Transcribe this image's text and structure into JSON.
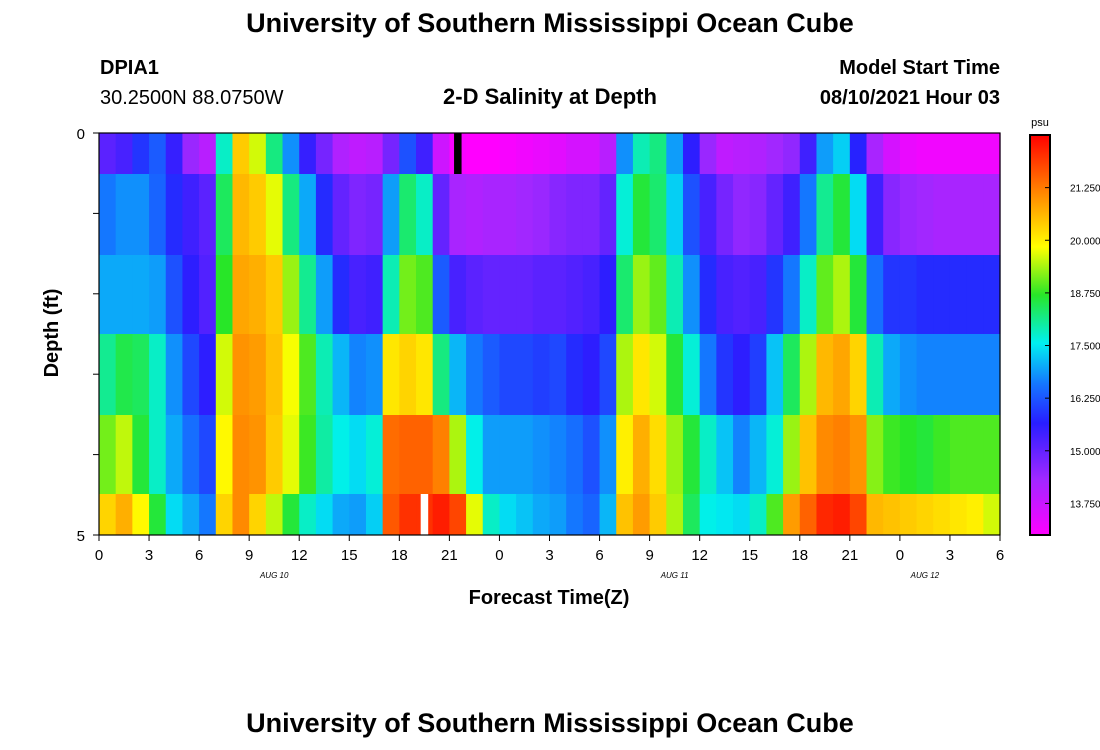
{
  "header": {
    "title": "University of Southern Mississippi Ocean Cube",
    "station": "DPIA1",
    "coords": "30.2500N  88.0750W",
    "plot_title": "2-D Salinity at Depth",
    "model_start_label": "Model Start Time",
    "model_start_value": "08/10/2021 Hour 03"
  },
  "footer": {
    "title": "University of Southern Mississippi Ocean Cube"
  },
  "chart_data": {
    "type": "heatmap",
    "title": "2-D Salinity at Depth",
    "xlabel": "Forecast Time(Z)",
    "ylabel": "Depth (ft)",
    "ylim": [
      0,
      5
    ],
    "x_tick_labels": [
      "0",
      "3",
      "6",
      "9",
      "12",
      "15",
      "18",
      "21",
      "0",
      "3",
      "6",
      "9",
      "12",
      "15",
      "18",
      "21",
      "0",
      "3",
      "6"
    ],
    "day_labels": [
      {
        "text": "AUG  10",
        "tick_index": 3.5
      },
      {
        "text": "AUG  11",
        "tick_index": 11.5
      },
      {
        "text": "AUG  12",
        "tick_index": 16.5
      }
    ],
    "y_tick_labels": [
      "0",
      "5"
    ],
    "colorbar": {
      "unit": "psu",
      "min": 13.0,
      "max": 22.5,
      "tick_labels": [
        "21.250",
        "20.000",
        "18.750",
        "17.500",
        "16.250",
        "15.000",
        "13.750"
      ],
      "tick_values": [
        21.25,
        20.0,
        18.75,
        17.5,
        16.25,
        15.0,
        13.75
      ]
    },
    "x_hours": [
      0,
      1,
      2,
      3,
      4,
      5,
      6,
      7,
      8,
      9,
      10,
      11,
      12,
      13,
      14,
      15,
      16,
      17,
      18,
      19,
      20,
      21,
      22,
      23,
      24,
      25,
      26,
      27,
      28,
      29,
      30,
      31,
      32,
      33,
      34,
      35,
      36,
      37,
      38,
      39,
      40,
      41,
      42,
      43,
      44,
      45,
      46,
      47,
      48,
      49,
      50,
      51,
      52,
      53
    ],
    "depth_rows": [
      0,
      1,
      2,
      3,
      4,
      5
    ],
    "salinity_psu": [
      [
        15.1,
        15.3,
        15.9,
        16.3,
        15.5,
        14.4,
        14.0,
        17.8,
        20.4,
        19.6,
        18.2,
        16.8,
        15.5,
        14.8,
        14.1,
        13.9,
        14.0,
        14.8,
        16.2,
        15.4,
        13.7,
        13.1,
        13.0,
        13.0,
        13.1,
        13.2,
        13.3,
        13.4,
        13.6,
        13.6,
        14.0,
        16.8,
        17.9,
        18.2,
        16.9,
        15.6,
        14.4,
        13.9,
        14.0,
        14.1,
        14.3,
        14.5,
        15.4,
        16.9,
        17.3,
        15.7,
        14.2,
        13.6,
        13.3,
        13.2,
        13.2,
        13.2,
        13.2,
        13.2
      ],
      [
        16.6,
        16.8,
        16.8,
        16.4,
        15.8,
        15.4,
        15.1,
        18.4,
        20.6,
        20.4,
        19.7,
        18.2,
        17.0,
        15.8,
        15.0,
        14.7,
        14.8,
        16.9,
        18.3,
        17.8,
        15.0,
        14.2,
        14.1,
        14.2,
        14.2,
        14.3,
        14.4,
        14.6,
        14.7,
        14.7,
        15.0,
        17.7,
        18.6,
        18.3,
        17.3,
        16.2,
        15.3,
        14.8,
        14.5,
        14.6,
        15.0,
        15.4,
        16.6,
        18.1,
        18.6,
        17.4,
        15.4,
        14.6,
        14.4,
        14.3,
        14.2,
        14.2,
        14.2,
        14.2
      ],
      [
        17.0,
        17.0,
        17.0,
        16.9,
        16.2,
        15.6,
        15.2,
        18.7,
        20.8,
        20.7,
        20.4,
        19.3,
        18.1,
        16.9,
        15.8,
        15.3,
        15.4,
        17.9,
        19.1,
        18.9,
        16.3,
        15.3,
        15.1,
        15.0,
        15.0,
        15.0,
        15.1,
        15.1,
        15.2,
        15.3,
        15.6,
        18.3,
        19.3,
        19.0,
        17.9,
        16.8,
        15.8,
        15.3,
        15.2,
        15.3,
        15.9,
        16.6,
        17.8,
        19.0,
        19.4,
        18.6,
        16.5,
        15.9,
        15.9,
        15.8,
        15.8,
        15.8,
        15.8,
        15.8
      ],
      [
        18.1,
        18.5,
        18.4,
        17.8,
        16.8,
        16.1,
        15.6,
        19.6,
        21.0,
        20.9,
        20.5,
        19.8,
        18.9,
        17.9,
        17.1,
        16.7,
        16.8,
        20.1,
        20.3,
        20.1,
        18.2,
        17.1,
        16.6,
        16.3,
        16.1,
        16.1,
        16.0,
        16.1,
        15.8,
        15.6,
        16.1,
        19.4,
        20.1,
        19.6,
        18.6,
        17.7,
        16.6,
        15.9,
        15.6,
        16.0,
        17.2,
        18.4,
        19.4,
        20.6,
        20.8,
        20.3,
        17.9,
        17.0,
        16.8,
        16.7,
        16.7,
        16.7,
        16.7,
        16.7
      ],
      [
        19.1,
        19.5,
        18.6,
        17.8,
        17.0,
        16.5,
        16.1,
        19.9,
        21.1,
        21.0,
        20.4,
        19.7,
        18.8,
        18.0,
        17.6,
        17.4,
        17.7,
        21.4,
        21.5,
        21.5,
        21.2,
        19.4,
        17.6,
        16.9,
        16.9,
        16.9,
        16.8,
        16.7,
        16.5,
        16.2,
        16.8,
        20.0,
        20.7,
        20.2,
        19.3,
        18.6,
        17.8,
        17.2,
        16.7,
        17.1,
        17.7,
        19.3,
        20.5,
        21.1,
        21.2,
        21.0,
        19.2,
        18.8,
        18.7,
        18.6,
        18.8,
        18.9,
        18.9,
        18.9
      ],
      [
        20.3,
        20.7,
        19.9,
        18.6,
        17.4,
        17.0,
        16.6,
        20.3,
        21.1,
        20.3,
        19.5,
        18.6,
        17.8,
        17.4,
        17.0,
        16.9,
        17.3,
        21.6,
        22.0,
        22.0,
        22.2,
        21.8,
        19.7,
        17.8,
        17.4,
        17.2,
        17.0,
        16.9,
        16.6,
        16.4,
        17.1,
        20.5,
        20.9,
        20.4,
        19.4,
        18.4,
        17.6,
        17.5,
        17.4,
        17.8,
        18.9,
        20.9,
        21.5,
        22.1,
        22.2,
        21.8,
        20.6,
        20.5,
        20.4,
        20.3,
        20.2,
        20.1,
        20.0,
        19.6
      ]
    ],
    "markers": [
      {
        "hour": 21,
        "depth_row": 0,
        "color": "#000000"
      },
      {
        "hour": 19,
        "depth_row": 5,
        "color": "#ffffff"
      }
    ]
  }
}
